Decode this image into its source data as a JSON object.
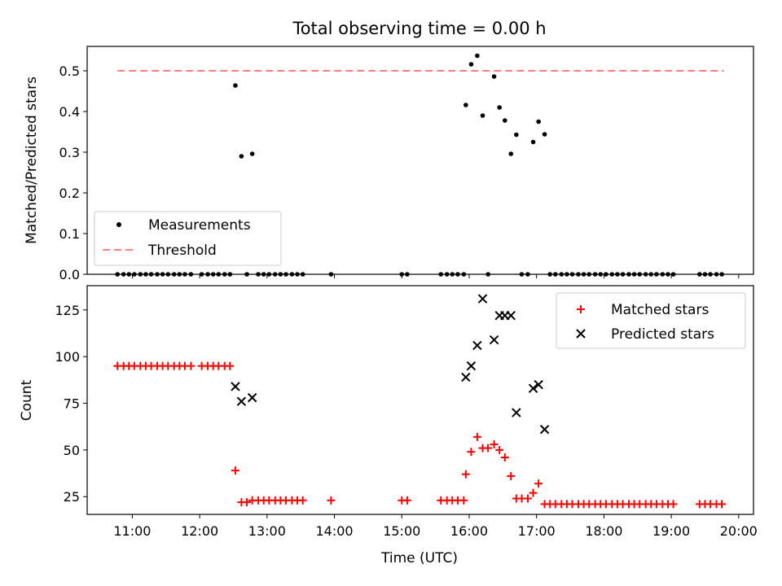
{
  "chart_data": {
    "type": "scatter",
    "title": "Total observing time = 0.00 h",
    "xlabel": "Time (UTC)",
    "x_ticks": [
      "11:00",
      "12:00",
      "13:00",
      "14:00",
      "15:00",
      "16:00",
      "17:00",
      "18:00",
      "19:00",
      "20:00"
    ],
    "x_range_hours": [
      10.33,
      20.22
    ],
    "top": {
      "ylabel": "Matched/Predicted stars",
      "ylim": [
        0,
        0.56
      ],
      "y_ticks": [
        "0.0",
        "0.1",
        "0.2",
        "0.3",
        "0.4",
        "0.5"
      ],
      "legend_position": "lower-left",
      "threshold": {
        "name": "Threshold",
        "value": 0.5,
        "x_start": 10.78,
        "x_end": 19.78,
        "color": "#ff7f7f"
      },
      "measurements": {
        "name": "Measurements",
        "color": "#000000",
        "points": [
          [
            10.78,
            0
          ],
          [
            10.87,
            0
          ],
          [
            10.95,
            0
          ],
          [
            11.03,
            0
          ],
          [
            11.12,
            0
          ],
          [
            11.2,
            0
          ],
          [
            11.28,
            0
          ],
          [
            11.37,
            0
          ],
          [
            11.45,
            0
          ],
          [
            11.53,
            0
          ],
          [
            11.62,
            0
          ],
          [
            11.7,
            0
          ],
          [
            11.78,
            0
          ],
          [
            11.87,
            0
          ],
          [
            12.03,
            0
          ],
          [
            12.12,
            0
          ],
          [
            12.2,
            0
          ],
          [
            12.28,
            0
          ],
          [
            12.37,
            0
          ],
          [
            12.45,
            0
          ],
          [
            12.53,
            0.464
          ],
          [
            12.62,
            0.29
          ],
          [
            12.7,
            0
          ],
          [
            12.78,
            0.296
          ],
          [
            12.87,
            0
          ],
          [
            12.95,
            0
          ],
          [
            13.03,
            0
          ],
          [
            13.12,
            0
          ],
          [
            13.2,
            0
          ],
          [
            13.28,
            0
          ],
          [
            13.37,
            0
          ],
          [
            13.45,
            0
          ],
          [
            13.53,
            0
          ],
          [
            13.95,
            0
          ],
          [
            15.0,
            0
          ],
          [
            15.08,
            0
          ],
          [
            15.58,
            0
          ],
          [
            15.67,
            0
          ],
          [
            15.75,
            0
          ],
          [
            15.83,
            0
          ],
          [
            15.92,
            0
          ],
          [
            15.95,
            0.416
          ],
          [
            16.03,
            0.516
          ],
          [
            16.12,
            0.537
          ],
          [
            16.2,
            0.39
          ],
          [
            16.28,
            0
          ],
          [
            16.37,
            0.486
          ],
          [
            16.45,
            0.41
          ],
          [
            16.53,
            0.378
          ],
          [
            16.62,
            0.296
          ],
          [
            16.7,
            0.343
          ],
          [
            16.78,
            0
          ],
          [
            16.87,
            0
          ],
          [
            16.95,
            0.325
          ],
          [
            17.03,
            0.375
          ],
          [
            17.12,
            0.344
          ],
          [
            17.2,
            0
          ],
          [
            17.28,
            0
          ],
          [
            17.37,
            0
          ],
          [
            17.45,
            0
          ],
          [
            17.53,
            0
          ],
          [
            17.62,
            0
          ],
          [
            17.7,
            0
          ],
          [
            17.78,
            0
          ],
          [
            17.87,
            0
          ],
          [
            17.95,
            0
          ],
          [
            18.03,
            0
          ],
          [
            18.12,
            0
          ],
          [
            18.2,
            0
          ],
          [
            18.28,
            0
          ],
          [
            18.37,
            0
          ],
          [
            18.45,
            0
          ],
          [
            18.53,
            0
          ],
          [
            18.62,
            0
          ],
          [
            18.7,
            0
          ],
          [
            18.78,
            0
          ],
          [
            18.87,
            0
          ],
          [
            18.95,
            0
          ],
          [
            19.03,
            0
          ],
          [
            19.42,
            0
          ],
          [
            19.5,
            0
          ],
          [
            19.58,
            0
          ],
          [
            19.67,
            0
          ],
          [
            19.75,
            0
          ]
        ]
      }
    },
    "bottom": {
      "ylabel": "Count",
      "ylim": [
        15.5,
        138
      ],
      "y_ticks": [
        "25",
        "50",
        "75",
        "100",
        "125"
      ],
      "y_tick_values": [
        25,
        50,
        75,
        100,
        125
      ],
      "legend_position": "upper-right",
      "matched": {
        "name": "Matched stars",
        "color": "#ff0000",
        "points": [
          [
            10.78,
            95
          ],
          [
            10.87,
            95
          ],
          [
            10.95,
            95
          ],
          [
            11.03,
            95
          ],
          [
            11.12,
            95
          ],
          [
            11.2,
            95
          ],
          [
            11.28,
            95
          ],
          [
            11.37,
            95
          ],
          [
            11.45,
            95
          ],
          [
            11.53,
            95
          ],
          [
            11.62,
            95
          ],
          [
            11.7,
            95
          ],
          [
            11.78,
            95
          ],
          [
            11.87,
            95
          ],
          [
            12.03,
            95
          ],
          [
            12.12,
            95
          ],
          [
            12.2,
            95
          ],
          [
            12.28,
            95
          ],
          [
            12.37,
            95
          ],
          [
            12.45,
            95
          ],
          [
            12.53,
            39
          ],
          [
            12.62,
            22
          ],
          [
            12.7,
            22
          ],
          [
            12.78,
            23
          ],
          [
            12.87,
            23
          ],
          [
            12.95,
            23
          ],
          [
            13.03,
            23
          ],
          [
            13.12,
            23
          ],
          [
            13.2,
            23
          ],
          [
            13.28,
            23
          ],
          [
            13.37,
            23
          ],
          [
            13.45,
            23
          ],
          [
            13.53,
            23
          ],
          [
            13.95,
            23
          ],
          [
            15.0,
            23
          ],
          [
            15.08,
            23
          ],
          [
            15.58,
            23
          ],
          [
            15.67,
            23
          ],
          [
            15.75,
            23
          ],
          [
            15.83,
            23
          ],
          [
            15.92,
            23
          ],
          [
            15.95,
            37
          ],
          [
            16.03,
            49
          ],
          [
            16.12,
            57
          ],
          [
            16.2,
            51
          ],
          [
            16.28,
            51
          ],
          [
            16.37,
            53
          ],
          [
            16.45,
            50
          ],
          [
            16.53,
            46
          ],
          [
            16.62,
            36
          ],
          [
            16.7,
            24
          ],
          [
            16.78,
            24
          ],
          [
            16.87,
            24
          ],
          [
            16.95,
            27
          ],
          [
            17.03,
            32
          ],
          [
            17.12,
            21
          ],
          [
            17.2,
            21
          ],
          [
            17.28,
            21
          ],
          [
            17.37,
            21
          ],
          [
            17.45,
            21
          ],
          [
            17.53,
            21
          ],
          [
            17.62,
            21
          ],
          [
            17.7,
            21
          ],
          [
            17.78,
            21
          ],
          [
            17.87,
            21
          ],
          [
            17.95,
            21
          ],
          [
            18.03,
            21
          ],
          [
            18.12,
            21
          ],
          [
            18.2,
            21
          ],
          [
            18.28,
            21
          ],
          [
            18.37,
            21
          ],
          [
            18.45,
            21
          ],
          [
            18.53,
            21
          ],
          [
            18.62,
            21
          ],
          [
            18.7,
            21
          ],
          [
            18.78,
            21
          ],
          [
            18.87,
            21
          ],
          [
            18.95,
            21
          ],
          [
            19.03,
            21
          ],
          [
            19.42,
            21
          ],
          [
            19.5,
            21
          ],
          [
            19.58,
            21
          ],
          [
            19.67,
            21
          ],
          [
            19.75,
            21
          ]
        ]
      },
      "predicted": {
        "name": "Predicted stars",
        "color": "#000000",
        "points": [
          [
            12.53,
            84
          ],
          [
            12.62,
            76
          ],
          [
            12.78,
            78
          ],
          [
            15.95,
            89
          ],
          [
            16.03,
            95
          ],
          [
            16.12,
            106
          ],
          [
            16.2,
            131
          ],
          [
            16.37,
            109
          ],
          [
            16.45,
            122
          ],
          [
            16.53,
            122
          ],
          [
            16.62,
            122
          ],
          [
            16.7,
            70
          ],
          [
            16.95,
            83
          ],
          [
            17.03,
            85
          ],
          [
            17.12,
            61
          ]
        ]
      }
    }
  }
}
